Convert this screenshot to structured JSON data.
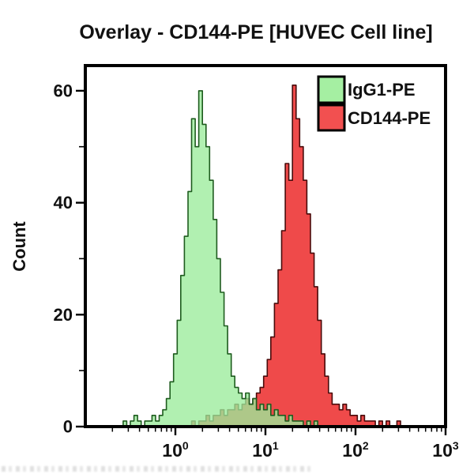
{
  "title": "Overlay - CD144-PE [HUVEC Cell line]",
  "legend": {
    "items": [
      {
        "label": "IgG1-PE",
        "fill": "#a5efa2",
        "border": "#000000"
      },
      {
        "label": "CD144-PE",
        "fill": "#f25050",
        "border": "#000000"
      }
    ]
  },
  "colors": {
    "frame": "#000000",
    "green_fill": "#9bec9b",
    "green_stroke": "#1e5c1e",
    "red_fill": "#ee4040",
    "red_stroke": "#490b0b",
    "text": "#111111"
  },
  "chart_data": {
    "type": "area",
    "subtype": "flow-cytometry-histogram-overlay",
    "title": "Overlay - CD144-PE [HUVEC Cell line]",
    "xlabel": "",
    "ylabel": "Count",
    "x_scale": "log10",
    "xlim": [
      0.1,
      1000
    ],
    "x_tick_base": "10",
    "x_tick_exponents": [
      0,
      1,
      2,
      3
    ],
    "x_tick_values": [
      1,
      10,
      100,
      1000
    ],
    "ylim": [
      0,
      64.5
    ],
    "y_ticks": [
      0,
      20,
      40,
      60
    ],
    "y_tick_labels": [
      "0",
      "20",
      "40",
      "60"
    ],
    "y_minor_ticks": [
      10,
      30,
      50
    ],
    "grid": false,
    "legend_position": "top-right-inside",
    "bin_log_start": -0.68,
    "bin_log_step": 0.04,
    "series": [
      {
        "name": "CD144-PE",
        "draw_order": 1,
        "fill": "#ee4040",
        "stroke": "#490b0b",
        "fill_opacity": 0.95,
        "counts": [
          0,
          0,
          0,
          0,
          0,
          0,
          0,
          0,
          0,
          0,
          0,
          0,
          0,
          0,
          0,
          0,
          0,
          0,
          0,
          0,
          0,
          0,
          1,
          0,
          1,
          1,
          2,
          1,
          2,
          2,
          3,
          2,
          3,
          3,
          4,
          3,
          4,
          5,
          4,
          5,
          6,
          7,
          9,
          12,
          16,
          22,
          28,
          35,
          47,
          44,
          61,
          55,
          50,
          44,
          38,
          31,
          25,
          19,
          13,
          9,
          6,
          4,
          4,
          3,
          4,
          3,
          2,
          2,
          1,
          2,
          1,
          1,
          1,
          0,
          1,
          0,
          1,
          0,
          0,
          1,
          0,
          0,
          0
        ]
      },
      {
        "name": "IgG1-PE",
        "draw_order": 2,
        "fill": "#9bec9b",
        "stroke": "#1e5c1e",
        "fill_opacity": 0.78,
        "counts": [
          0,
          0,
          0,
          1,
          0,
          1,
          2,
          1,
          0,
          1,
          1,
          2,
          1,
          2,
          3,
          5,
          8,
          13,
          19,
          27,
          34,
          42,
          55,
          50,
          60,
          54,
          50,
          44,
          37,
          30,
          24,
          18,
          13,
          9,
          7,
          6,
          5,
          6,
          4,
          5,
          3,
          4,
          3,
          4,
          2,
          3,
          2,
          2,
          1,
          2,
          1,
          1,
          1,
          0,
          1,
          0,
          1,
          0,
          0,
          0,
          0,
          0,
          0,
          0,
          0,
          0,
          0,
          0,
          0,
          0,
          0,
          0,
          0,
          0,
          0,
          0,
          0,
          0,
          0,
          0,
          0,
          0,
          0
        ]
      }
    ]
  }
}
